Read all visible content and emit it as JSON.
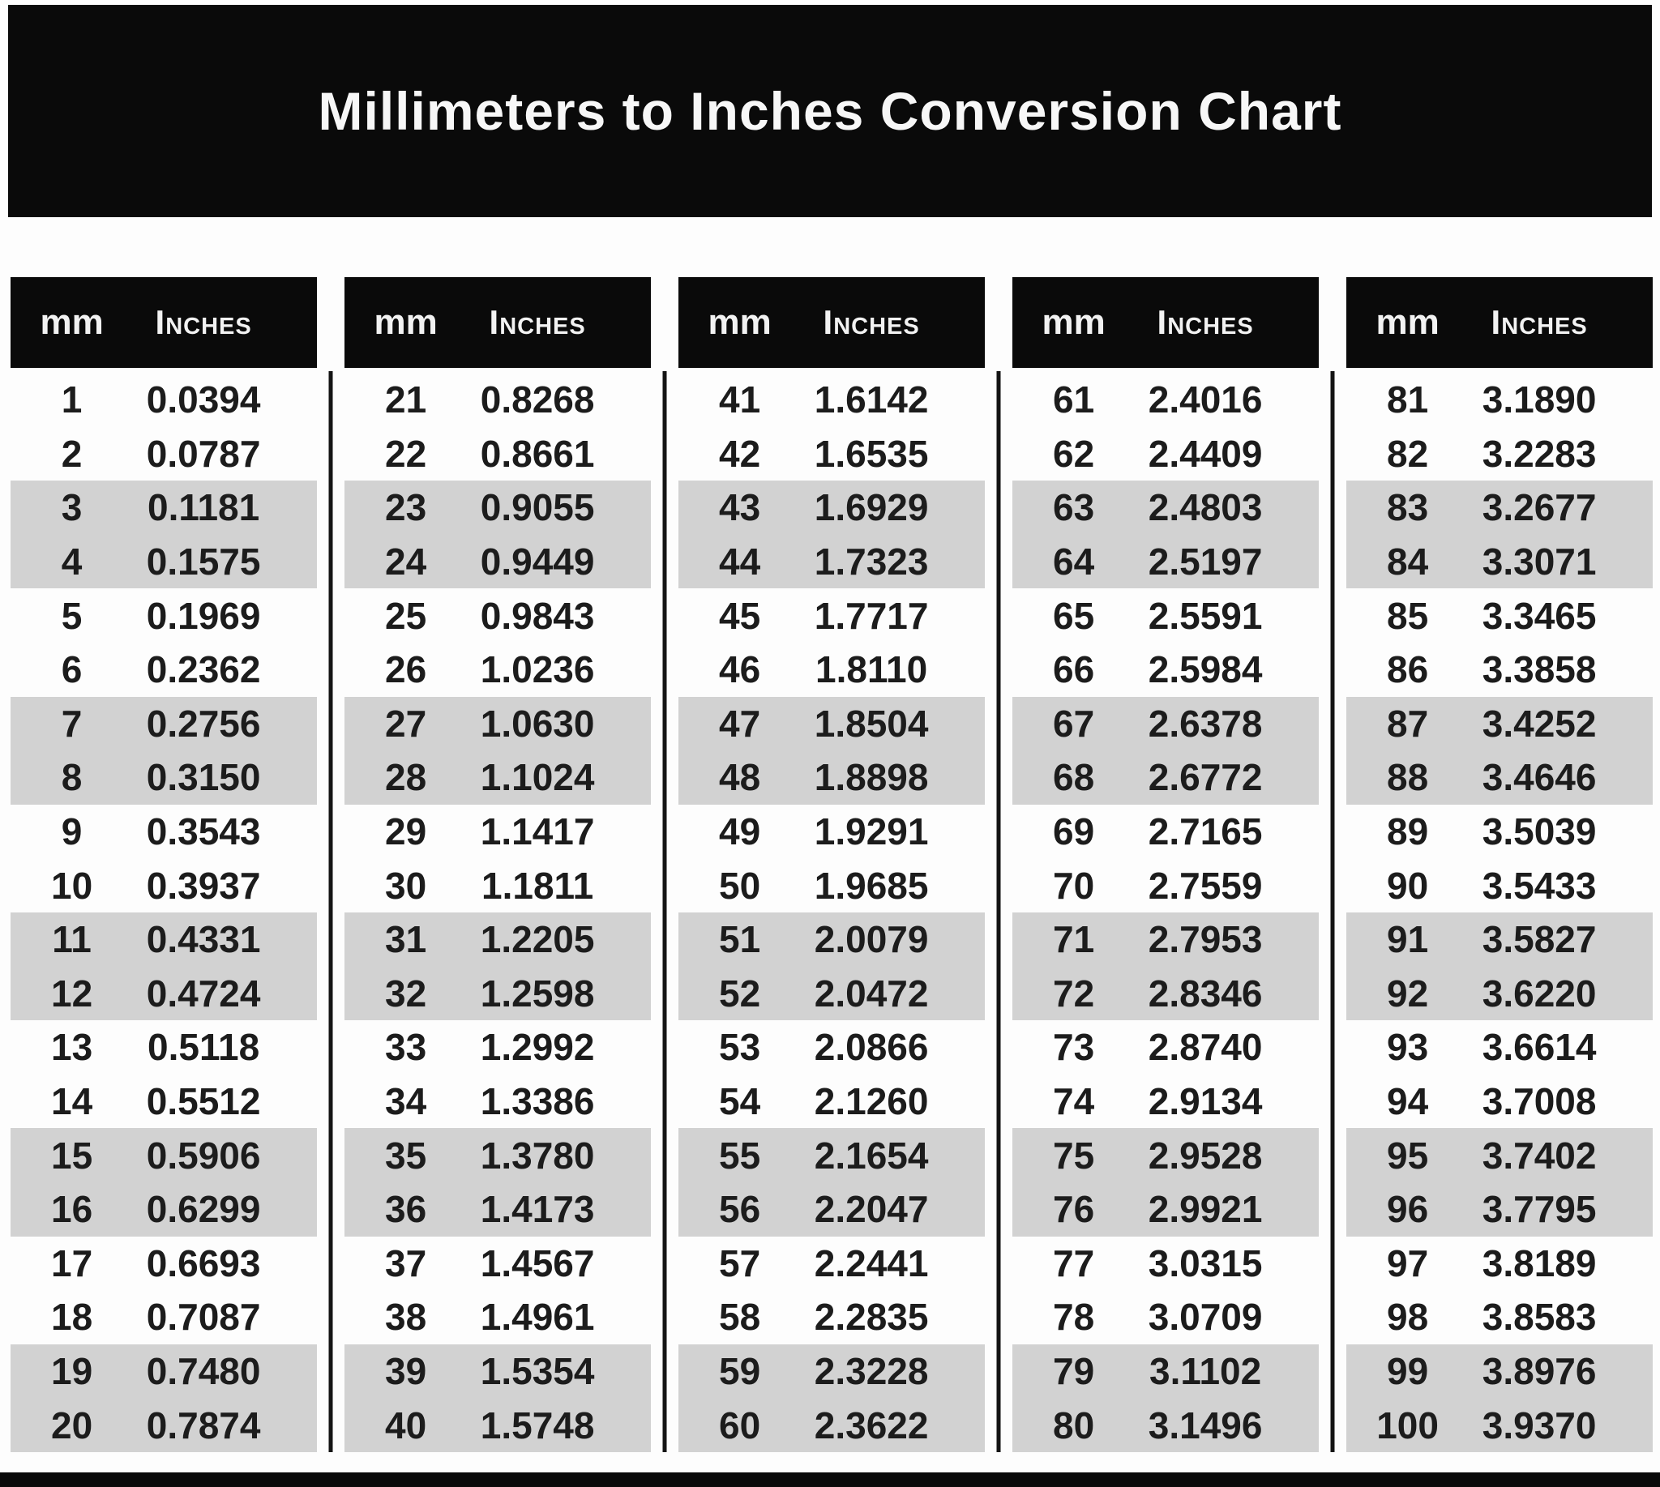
{
  "title": "Millimeters to Inches Conversion Chart",
  "table": {
    "headers": {
      "mm": "mm",
      "inches": "Inches"
    },
    "group_size": 20,
    "stripe_pattern": "alternating pairs of rows shaded, starting unshaded"
  },
  "colors": {
    "banner_bg": "#0a0a0a",
    "banner_text": "#f7f7f7",
    "header_bg": "#0a0a0a",
    "header_text": "#f2f2f2",
    "stripe_gray": "#d2d2d2",
    "data_text": "#1c1c1c",
    "divider": "#141414",
    "page_bg": "#fdfdfd"
  },
  "chart_data": {
    "type": "table",
    "title": "Millimeters to Inches Conversion Chart",
    "columns": [
      "mm",
      "Inches"
    ],
    "layout": "5 column-groups of 20 rows each; black header per group; vertical divider lines between groups",
    "mm": [
      1,
      2,
      3,
      4,
      5,
      6,
      7,
      8,
      9,
      10,
      11,
      12,
      13,
      14,
      15,
      16,
      17,
      18,
      19,
      20,
      21,
      22,
      23,
      24,
      25,
      26,
      27,
      28,
      29,
      30,
      31,
      32,
      33,
      34,
      35,
      36,
      37,
      38,
      39,
      40,
      41,
      42,
      43,
      44,
      45,
      46,
      47,
      48,
      49,
      50,
      51,
      52,
      53,
      54,
      55,
      56,
      57,
      58,
      59,
      60,
      61,
      62,
      63,
      64,
      65,
      66,
      67,
      68,
      69,
      70,
      71,
      72,
      73,
      74,
      75,
      76,
      77,
      78,
      79,
      80,
      81,
      82,
      83,
      84,
      85,
      86,
      87,
      88,
      89,
      90,
      91,
      92,
      93,
      94,
      95,
      96,
      97,
      98,
      99,
      100
    ],
    "inches": [
      "0.0394",
      "0.0787",
      "0.1181",
      "0.1575",
      "0.1969",
      "0.2362",
      "0.2756",
      "0.3150",
      "0.3543",
      "0.3937",
      "0.4331",
      "0.4724",
      "0.5118",
      "0.5512",
      "0.5906",
      "0.6299",
      "0.6693",
      "0.7087",
      "0.7480",
      "0.7874",
      "0.8268",
      "0.8661",
      "0.9055",
      "0.9449",
      "0.9843",
      "1.0236",
      "1.0630",
      "1.1024",
      "1.1417",
      "1.1811",
      "1.2205",
      "1.2598",
      "1.2992",
      "1.3386",
      "1.3780",
      "1.4173",
      "1.4567",
      "1.4961",
      "1.5354",
      "1.5748",
      "1.6142",
      "1.6535",
      "1.6929",
      "1.7323",
      "1.7717",
      "1.8110",
      "1.8504",
      "1.8898",
      "1.9291",
      "1.9685",
      "2.0079",
      "2.0472",
      "2.0866",
      "2.1260",
      "2.1654",
      "2.2047",
      "2.2441",
      "2.2835",
      "2.3228",
      "2.3622",
      "2.4016",
      "2.4409",
      "2.4803",
      "2.5197",
      "2.5591",
      "2.5984",
      "2.6378",
      "2.6772",
      "2.7165",
      "2.7559",
      "2.7953",
      "2.8346",
      "2.8740",
      "2.9134",
      "2.9528",
      "2.9921",
      "3.0315",
      "3.0709",
      "3.1102",
      "3.1496",
      "3.1890",
      "3.2283",
      "3.2677",
      "3.3071",
      "3.3465",
      "3.3858",
      "3.4252",
      "3.4646",
      "3.5039",
      "3.5433",
      "3.5827",
      "3.6220",
      "3.6614",
      "3.7008",
      "3.7402",
      "3.7795",
      "3.8189",
      "3.8583",
      "3.8976",
      "3.9370"
    ]
  }
}
